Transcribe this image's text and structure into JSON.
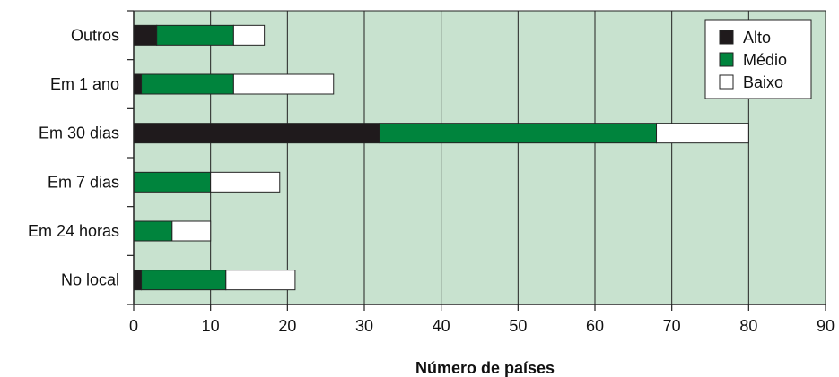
{
  "chart_data": {
    "type": "bar",
    "orientation": "horizontal",
    "stacked": true,
    "categories": [
      "No local",
      "Em 24 horas",
      "Em 7 dias",
      "Em 30 dias",
      "Em 1 ano",
      "Outros"
    ],
    "series": [
      {
        "name": "Alto",
        "color": "#1f1a1c",
        "values": [
          1,
          0,
          0,
          32,
          1,
          3
        ]
      },
      {
        "name": "Médio",
        "color": "#00843d",
        "values": [
          11,
          5,
          10,
          36,
          12,
          10
        ]
      },
      {
        "name": "Baixo",
        "color": "#ffffff",
        "values": [
          9,
          5,
          9,
          12,
          13,
          4
        ]
      }
    ],
    "xlabel": "Número de países",
    "ylabel": "",
    "xlim": [
      0,
      90
    ],
    "xticks": [
      0,
      10,
      20,
      30,
      40,
      50,
      60,
      70,
      80,
      90
    ],
    "grid": "vertical",
    "legend": "top-right",
    "plot_background": "#c8e2cf"
  },
  "axis": {
    "title": "Número de países"
  },
  "legend_items": [
    {
      "label": "Alto",
      "color": "#1f1a1c"
    },
    {
      "label": "Médio",
      "color": "#00843d"
    },
    {
      "label": "Baixo",
      "color": "#ffffff"
    }
  ]
}
